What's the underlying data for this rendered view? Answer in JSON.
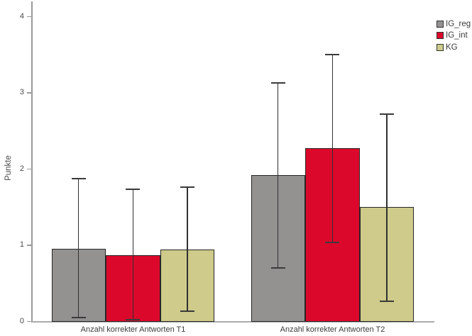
{
  "chart_data": {
    "type": "bar",
    "title": "",
    "xlabel": "",
    "ylabel": "Punkte",
    "categories": [
      "Anzahl korrekter Antworten T1",
      "Anzahl korrekter Antworten T2"
    ],
    "series": [
      {
        "name": "IG_reg",
        "color": "#949191",
        "values": [
          0.95,
          1.92
        ],
        "error_low": [
          0.05,
          0.7
        ],
        "error_high": [
          1.87,
          3.13
        ]
      },
      {
        "name": "IG_int",
        "color": "#DC082B",
        "values": [
          0.87,
          2.27
        ],
        "error_low": [
          0.02,
          1.03
        ],
        "error_high": [
          1.73,
          3.5
        ]
      },
      {
        "name": "KG",
        "color": "#CECB8B",
        "values": [
          0.94,
          1.5
        ],
        "error_low": [
          0.13,
          0.26
        ],
        "error_high": [
          1.76,
          2.72
        ]
      }
    ],
    "yticks": [
      0,
      1,
      2,
      3,
      4
    ],
    "ylim": [
      0,
      4.2
    ],
    "grid": false,
    "legend_position": "top-right",
    "error_bars": true
  },
  "colors": {
    "background": "#ffffff",
    "axis": "#9a9a9a",
    "baseline": "#ababab",
    "bar_border": "#262626",
    "error_bar": "#303030",
    "text": "#3b3b3b"
  }
}
